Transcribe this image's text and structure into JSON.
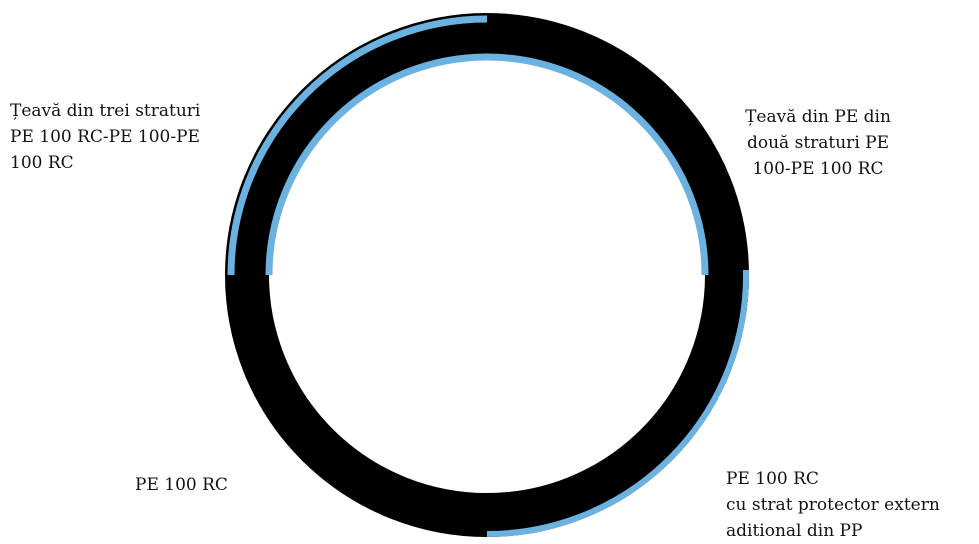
{
  "diagram": {
    "colors": {
      "pipe_wall": "#000000",
      "layer": "#6cb2e0",
      "background": "#ffffff",
      "text": "#111111"
    },
    "labels": {
      "top_left": [
        "Țeavă din trei straturi",
        "PE 100 RC-PE 100-PE",
        "100 RC"
      ],
      "top_right": [
        "Țeavă din PE din",
        "două straturi PE",
        "100-PE 100 RC"
      ],
      "bottom_left": [
        "PE 100 RC"
      ],
      "bottom_right": [
        "PE 100 RC",
        "cu strat protector extern",
        "aditional din PP"
      ]
    }
  }
}
